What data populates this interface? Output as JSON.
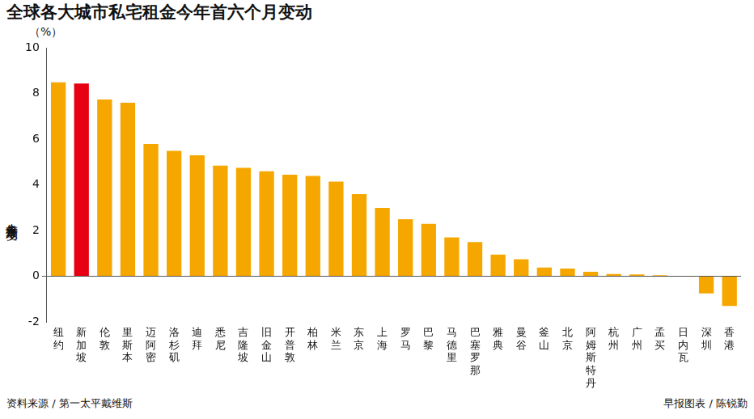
{
  "chart_data": {
    "type": "bar",
    "title": "全球各大城市私宅租金今年首六个月变动",
    "y_unit": "（%）",
    "y_label": "今年首六个月变动",
    "source": "资料来源 / 第一太平戴维斯",
    "credit": "早报图表 / 陈锐勤",
    "categories": [
      "纽约",
      "新加坡",
      "伦敦",
      "里斯本",
      "迈阿密",
      "洛杉矶",
      "迪拜",
      "悉尼",
      "吉隆坡",
      "旧金山",
      "开普敦",
      "柏林",
      "米兰",
      "东京",
      "上海",
      "罗马",
      "巴黎",
      "马德里",
      "巴塞罗那",
      "雅典",
      "曼谷",
      "釜山",
      "北京",
      "阿姆斯特丹",
      "杭州",
      "广州",
      "孟买",
      "日内瓦",
      "深圳",
      "香港"
    ],
    "values": [
      8.5,
      8.45,
      7.75,
      7.6,
      5.8,
      5.5,
      5.3,
      4.85,
      4.75,
      4.6,
      4.45,
      4.4,
      4.15,
      3.6,
      3.0,
      2.5,
      2.3,
      1.7,
      1.5,
      0.95,
      0.75,
      0.38,
      0.34,
      0.2,
      0.1,
      0.08,
      0.05,
      0.02,
      -0.75,
      -1.3
    ],
    "colors": [
      "#f5a700",
      "#e60012",
      "#f5a700",
      "#f5a700",
      "#f5a700",
      "#f5a700",
      "#f5a700",
      "#f5a700",
      "#f5a700",
      "#f5a700",
      "#f5a700",
      "#f5a700",
      "#f5a700",
      "#f5a700",
      "#f5a700",
      "#f5a700",
      "#f5a700",
      "#f5a700",
      "#f5a700",
      "#f5a700",
      "#f5a700",
      "#f5a700",
      "#f5a700",
      "#f5a700",
      "#f5a700",
      "#f5a700",
      "#f5a700",
      "#f5a700",
      "#f5a700",
      "#f5a700"
    ],
    "ylim": [
      -2,
      10
    ],
    "yticks": [
      -2,
      0,
      2,
      4,
      6,
      8,
      10
    ],
    "grid": false
  }
}
